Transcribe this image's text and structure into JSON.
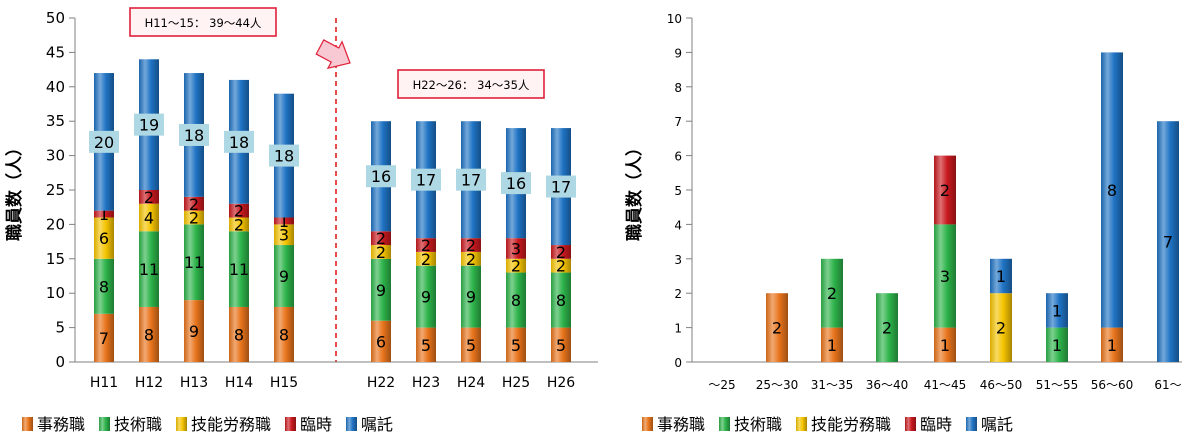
{
  "colors": {
    "jimu": "#e8741c",
    "gijutsu": "#2db34a",
    "ginou": "#f5c400",
    "rinji": "#c8191e",
    "shokutaku": "#1f73c4",
    "label_box": "#aed8e3",
    "callout_border": "#e0213a",
    "callout_fill": "#fff3f4",
    "arrow_fill": "#f8c9d2",
    "divider": "#e02020"
  },
  "chart_data": [
    {
      "type": "bar",
      "stacked": true,
      "ylabel": "職員数（人）",
      "ylim": [
        0,
        50
      ],
      "yticks": [
        0,
        5,
        10,
        15,
        20,
        25,
        30,
        35,
        40,
        45,
        50
      ],
      "grid": false,
      "legend_position": "bottom",
      "categories": [
        "H11",
        "H12",
        "H13",
        "H14",
        "H15",
        "H22",
        "H23",
        "H24",
        "H25",
        "H26"
      ],
      "series": [
        {
          "name": "事務職",
          "color_key": "jimu",
          "values": [
            7,
            8,
            9,
            8,
            8,
            6,
            5,
            5,
            5,
            5
          ]
        },
        {
          "name": "技術職",
          "color_key": "gijutsu",
          "values": [
            8,
            11,
            11,
            11,
            9,
            9,
            9,
            9,
            8,
            8
          ]
        },
        {
          "name": "技能労務職",
          "color_key": "ginou",
          "values": [
            6,
            4,
            2,
            2,
            3,
            2,
            2,
            2,
            2,
            2
          ]
        },
        {
          "name": "臨時",
          "color_key": "rinji",
          "values": [
            1,
            2,
            2,
            2,
            1,
            2,
            2,
            2,
            3,
            2
          ]
        },
        {
          "name": "嘱託",
          "color_key": "shokutaku",
          "values": [
            20,
            19,
            18,
            18,
            18,
            16,
            17,
            17,
            16,
            17
          ]
        }
      ],
      "annotations": [
        "H11〜15： 39〜44人",
        "H22〜26： 34〜35人"
      ]
    },
    {
      "type": "bar",
      "stacked": true,
      "ylabel": "職員数（人）",
      "ylim": [
        0,
        10
      ],
      "yticks": [
        0,
        1,
        2,
        3,
        4,
        5,
        6,
        7,
        8,
        9,
        10
      ],
      "grid": false,
      "legend_position": "bottom",
      "categories": [
        "〜25",
        "25〜30",
        "31〜35",
        "36〜40",
        "41〜45",
        "46〜50",
        "51〜55",
        "56〜60",
        "61〜"
      ],
      "series": [
        {
          "name": "事務職",
          "color_key": "jimu",
          "values": [
            0,
            2,
            1,
            0,
            1,
            0,
            0,
            1,
            0
          ]
        },
        {
          "name": "技術職",
          "color_key": "gijutsu",
          "values": [
            0,
            0,
            2,
            2,
            3,
            0,
            1,
            0,
            0
          ]
        },
        {
          "name": "技能労務職",
          "color_key": "ginou",
          "values": [
            0,
            0,
            0,
            0,
            0,
            2,
            0,
            0,
            0
          ]
        },
        {
          "name": "臨時",
          "color_key": "rinji",
          "values": [
            0,
            0,
            0,
            0,
            2,
            0,
            0,
            0,
            0
          ]
        },
        {
          "name": "嘱託",
          "color_key": "shokutaku",
          "values": [
            0,
            0,
            0,
            0,
            0,
            1,
            1,
            8,
            7
          ]
        }
      ]
    }
  ]
}
